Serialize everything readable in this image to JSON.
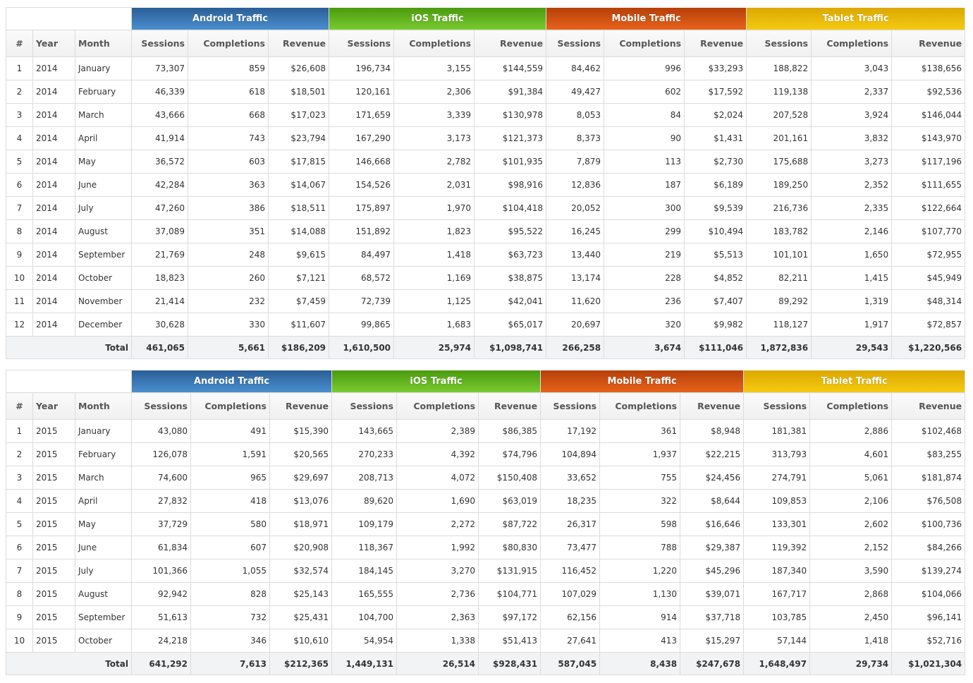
{
  "colors": {
    "android": "#3a78b8",
    "ios": "#62b41f",
    "mobile": "#d45214",
    "tablet": "#ecbd08"
  },
  "groups": [
    "Android Traffic",
    "iOS Traffic",
    "Mobile Traffic",
    "Tablet Traffic"
  ],
  "columns": [
    "#",
    "Year",
    "Month",
    "Sessions",
    "Completions",
    "Revenue",
    "Sessions",
    "Completions",
    "Revenue",
    "Sessions",
    "Completions",
    "Revenue",
    "Sessions",
    "Completions",
    "Revenue"
  ],
  "tables": [
    {
      "rows": [
        [
          "1",
          "2014",
          "January",
          "73,307",
          "859",
          "$26,608",
          "196,734",
          "3,155",
          "$144,559",
          "84,462",
          "996",
          "$33,293",
          "188,822",
          "3,043",
          "$138,656"
        ],
        [
          "2",
          "2014",
          "February",
          "46,339",
          "618",
          "$18,501",
          "120,161",
          "2,306",
          "$91,384",
          "49,427",
          "602",
          "$17,592",
          "119,138",
          "2,337",
          "$92,536"
        ],
        [
          "3",
          "2014",
          "March",
          "43,666",
          "668",
          "$17,023",
          "171,659",
          "3,339",
          "$130,978",
          "8,053",
          "84",
          "$2,024",
          "207,528",
          "3,924",
          "$146,044"
        ],
        [
          "4",
          "2014",
          "April",
          "41,914",
          "743",
          "$23,794",
          "167,290",
          "3,173",
          "$121,373",
          "8,373",
          "90",
          "$1,431",
          "201,161",
          "3,832",
          "$143,970"
        ],
        [
          "5",
          "2014",
          "May",
          "36,572",
          "603",
          "$17,815",
          "146,668",
          "2,782",
          "$101,935",
          "7,879",
          "113",
          "$2,730",
          "175,688",
          "3,273",
          "$117,196"
        ],
        [
          "6",
          "2014",
          "June",
          "42,284",
          "363",
          "$14,067",
          "154,526",
          "2,031",
          "$98,916",
          "12,836",
          "187",
          "$6,189",
          "189,250",
          "2,352",
          "$111,655"
        ],
        [
          "7",
          "2014",
          "July",
          "47,260",
          "386",
          "$18,511",
          "175,897",
          "1,970",
          "$104,418",
          "20,052",
          "300",
          "$9,539",
          "216,736",
          "2,335",
          "$122,664"
        ],
        [
          "8",
          "2014",
          "August",
          "37,089",
          "351",
          "$14,088",
          "151,892",
          "1,823",
          "$95,522",
          "16,245",
          "299",
          "$10,494",
          "183,782",
          "2,146",
          "$107,770"
        ],
        [
          "9",
          "2014",
          "September",
          "21,769",
          "248",
          "$9,615",
          "84,497",
          "1,418",
          "$63,723",
          "13,440",
          "219",
          "$5,513",
          "101,101",
          "1,650",
          "$72,955"
        ],
        [
          "10",
          "2014",
          "October",
          "18,823",
          "260",
          "$7,121",
          "68,572",
          "1,169",
          "$38,875",
          "13,174",
          "228",
          "$4,852",
          "82,211",
          "1,415",
          "$45,949"
        ],
        [
          "11",
          "2014",
          "November",
          "21,414",
          "232",
          "$7,459",
          "72,739",
          "1,125",
          "$42,041",
          "11,620",
          "236",
          "$7,407",
          "89,292",
          "1,319",
          "$48,314"
        ],
        [
          "12",
          "2014",
          "December",
          "30,628",
          "330",
          "$11,607",
          "99,865",
          "1,683",
          "$65,017",
          "20,697",
          "320",
          "$9,982",
          "118,127",
          "1,917",
          "$72,857"
        ]
      ],
      "total": [
        "Total",
        "461,065",
        "5,661",
        "$186,209",
        "1,610,500",
        "25,974",
        "$1,098,741",
        "266,258",
        "3,674",
        "$111,046",
        "1,872,836",
        "29,543",
        "$1,220,566"
      ]
    },
    {
      "rows": [
        [
          "1",
          "2015",
          "January",
          "43,080",
          "491",
          "$15,390",
          "143,665",
          "2,389",
          "$86,385",
          "17,192",
          "361",
          "$8,948",
          "181,381",
          "2,886",
          "$102,468"
        ],
        [
          "2",
          "2015",
          "February",
          "126,078",
          "1,591",
          "$20,565",
          "270,233",
          "4,392",
          "$74,796",
          "104,894",
          "1,937",
          "$22,215",
          "313,793",
          "4,601",
          "$83,255"
        ],
        [
          "3",
          "2015",
          "March",
          "74,600",
          "965",
          "$29,697",
          "208,713",
          "4,072",
          "$150,408",
          "33,652",
          "755",
          "$24,456",
          "274,791",
          "5,061",
          "$181,874"
        ],
        [
          "4",
          "2015",
          "April",
          "27,832",
          "418",
          "$13,076",
          "89,620",
          "1,690",
          "$63,019",
          "18,235",
          "322",
          "$8,644",
          "109,853",
          "2,106",
          "$76,508"
        ],
        [
          "5",
          "2015",
          "May",
          "37,729",
          "580",
          "$18,971",
          "109,179",
          "2,272",
          "$87,722",
          "26,317",
          "598",
          "$16,646",
          "133,301",
          "2,602",
          "$100,736"
        ],
        [
          "6",
          "2015",
          "June",
          "61,834",
          "607",
          "$20,908",
          "118,367",
          "1,992",
          "$80,830",
          "73,477",
          "788",
          "$29,387",
          "119,392",
          "2,152",
          "$84,266"
        ],
        [
          "7",
          "2015",
          "July",
          "101,366",
          "1,055",
          "$32,574",
          "184,145",
          "3,270",
          "$131,915",
          "116,452",
          "1,220",
          "$45,296",
          "187,340",
          "3,590",
          "$139,274"
        ],
        [
          "8",
          "2015",
          "August",
          "92,942",
          "828",
          "$25,143",
          "165,555",
          "2,736",
          "$104,771",
          "107,029",
          "1,130",
          "$39,071",
          "167,717",
          "2,868",
          "$104,066"
        ],
        [
          "9",
          "2015",
          "September",
          "51,613",
          "732",
          "$25,431",
          "104,700",
          "2,363",
          "$97,172",
          "62,156",
          "914",
          "$37,718",
          "103,785",
          "2,450",
          "$96,141"
        ],
        [
          "10",
          "2015",
          "October",
          "24,218",
          "346",
          "$10,610",
          "54,954",
          "1,338",
          "$51,413",
          "27,641",
          "413",
          "$15,297",
          "57,144",
          "1,418",
          "$52,716"
        ]
      ],
      "total": [
        "Total",
        "641,292",
        "7,613",
        "$212,365",
        "1,449,131",
        "26,514",
        "$928,431",
        "587,045",
        "8,438",
        "$247,678",
        "1,648,497",
        "29,734",
        "$1,021,304"
      ]
    }
  ]
}
